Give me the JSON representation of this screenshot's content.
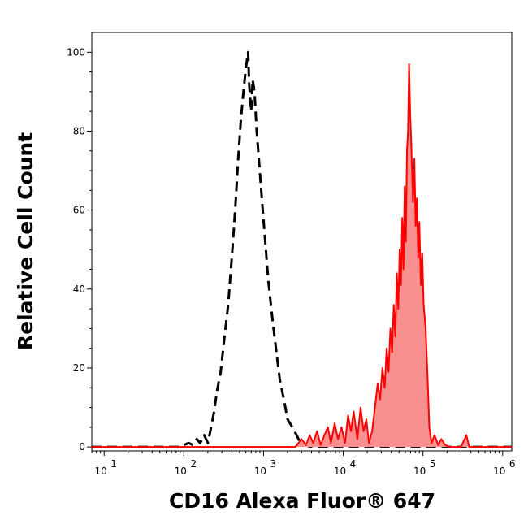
{
  "chart_data": {
    "type": "area",
    "title": "",
    "xlabel": "CD16 Alexa Fluor® 647",
    "ylabel": "Relative Cell Count",
    "x_scale": "log",
    "xlim": [
      7,
      1300000
    ],
    "ylim": [
      -1,
      105
    ],
    "x_ticks": [
      {
        "value": 10,
        "label": "10",
        "exp": "1"
      },
      {
        "value": 100,
        "label": "10",
        "exp": "2"
      },
      {
        "value": 1000,
        "label": "10",
        "exp": "3"
      },
      {
        "value": 10000,
        "label": "10",
        "exp": "4"
      },
      {
        "value": 100000,
        "label": "10",
        "exp": "5"
      },
      {
        "value": 1000000,
        "label": "10",
        "exp": "6"
      }
    ],
    "y_ticks": [
      0,
      20,
      40,
      60,
      80,
      100
    ],
    "grid": false,
    "legend": "none",
    "series": [
      {
        "style": "dashed",
        "color": "#000000",
        "fill": "none",
        "points": [
          [
            7,
            0
          ],
          [
            50,
            0
          ],
          [
            90,
            0
          ],
          [
            100,
            0.5
          ],
          [
            115,
            1
          ],
          [
            130,
            0.5
          ],
          [
            145,
            2
          ],
          [
            160,
            1
          ],
          [
            180,
            3
          ],
          [
            200,
            1
          ],
          [
            220,
            5
          ],
          [
            240,
            9
          ],
          [
            260,
            14
          ],
          [
            290,
            19
          ],
          [
            320,
            27
          ],
          [
            360,
            36
          ],
          [
            400,
            48
          ],
          [
            440,
            60
          ],
          [
            480,
            73
          ],
          [
            520,
            83
          ],
          [
            560,
            90
          ],
          [
            600,
            96
          ],
          [
            640,
            100
          ],
          [
            660,
            92
          ],
          [
            700,
            85
          ],
          [
            730,
            93
          ],
          [
            770,
            90
          ],
          [
            820,
            80
          ],
          [
            880,
            72
          ],
          [
            950,
            63
          ],
          [
            1050,
            52
          ],
          [
            1150,
            42
          ],
          [
            1300,
            32
          ],
          [
            1450,
            24
          ],
          [
            1600,
            17
          ],
          [
            1800,
            12
          ],
          [
            2000,
            7
          ],
          [
            2300,
            5
          ],
          [
            2600,
            3
          ],
          [
            2900,
            1
          ],
          [
            3300,
            0.5
          ],
          [
            4000,
            0
          ],
          [
            1300000,
            0
          ]
        ]
      },
      {
        "style": "solid",
        "color": "#ff0000",
        "fill": "#f99090",
        "points": [
          [
            7,
            0
          ],
          [
            2500,
            0
          ],
          [
            3000,
            2
          ],
          [
            3400,
            0.5
          ],
          [
            3800,
            3
          ],
          [
            4200,
            1
          ],
          [
            4700,
            4
          ],
          [
            5200,
            0.5
          ],
          [
            5800,
            3
          ],
          [
            6400,
            5
          ],
          [
            7000,
            1
          ],
          [
            7800,
            6
          ],
          [
            8600,
            2
          ],
          [
            9500,
            5
          ],
          [
            10500,
            1
          ],
          [
            11500,
            8
          ],
          [
            12500,
            4
          ],
          [
            13500,
            9
          ],
          [
            15000,
            2
          ],
          [
            16500,
            10
          ],
          [
            18000,
            4
          ],
          [
            19500,
            7
          ],
          [
            21000,
            1
          ],
          [
            23000,
            4
          ],
          [
            25000,
            10
          ],
          [
            27000,
            16
          ],
          [
            29000,
            12
          ],
          [
            31000,
            20
          ],
          [
            33000,
            15
          ],
          [
            35000,
            25
          ],
          [
            37000,
            19
          ],
          [
            39000,
            30
          ],
          [
            41000,
            24
          ],
          [
            43000,
            36
          ],
          [
            45000,
            28
          ],
          [
            47000,
            44
          ],
          [
            49000,
            35
          ],
          [
            51000,
            50
          ],
          [
            53000,
            41
          ],
          [
            55000,
            58
          ],
          [
            57000,
            45
          ],
          [
            59000,
            66
          ],
          [
            61000,
            52
          ],
          [
            63000,
            75
          ],
          [
            65000,
            80
          ],
          [
            67000,
            97
          ],
          [
            69000,
            85
          ],
          [
            71000,
            78
          ],
          [
            73000,
            70
          ],
          [
            75000,
            62
          ],
          [
            78000,
            73
          ],
          [
            81000,
            56
          ],
          [
            84000,
            63
          ],
          [
            87000,
            48
          ],
          [
            90000,
            57
          ],
          [
            94000,
            41
          ],
          [
            98000,
            49
          ],
          [
            102000,
            36
          ],
          [
            108000,
            30
          ],
          [
            114000,
            18
          ],
          [
            120000,
            5
          ],
          [
            128000,
            1
          ],
          [
            140000,
            3
          ],
          [
            155000,
            0.5
          ],
          [
            170000,
            2
          ],
          [
            190000,
            0.5
          ],
          [
            220000,
            0
          ],
          [
            300000,
            0
          ],
          [
            350000,
            3
          ],
          [
            380000,
            0
          ],
          [
            1300000,
            0
          ]
        ]
      }
    ]
  }
}
